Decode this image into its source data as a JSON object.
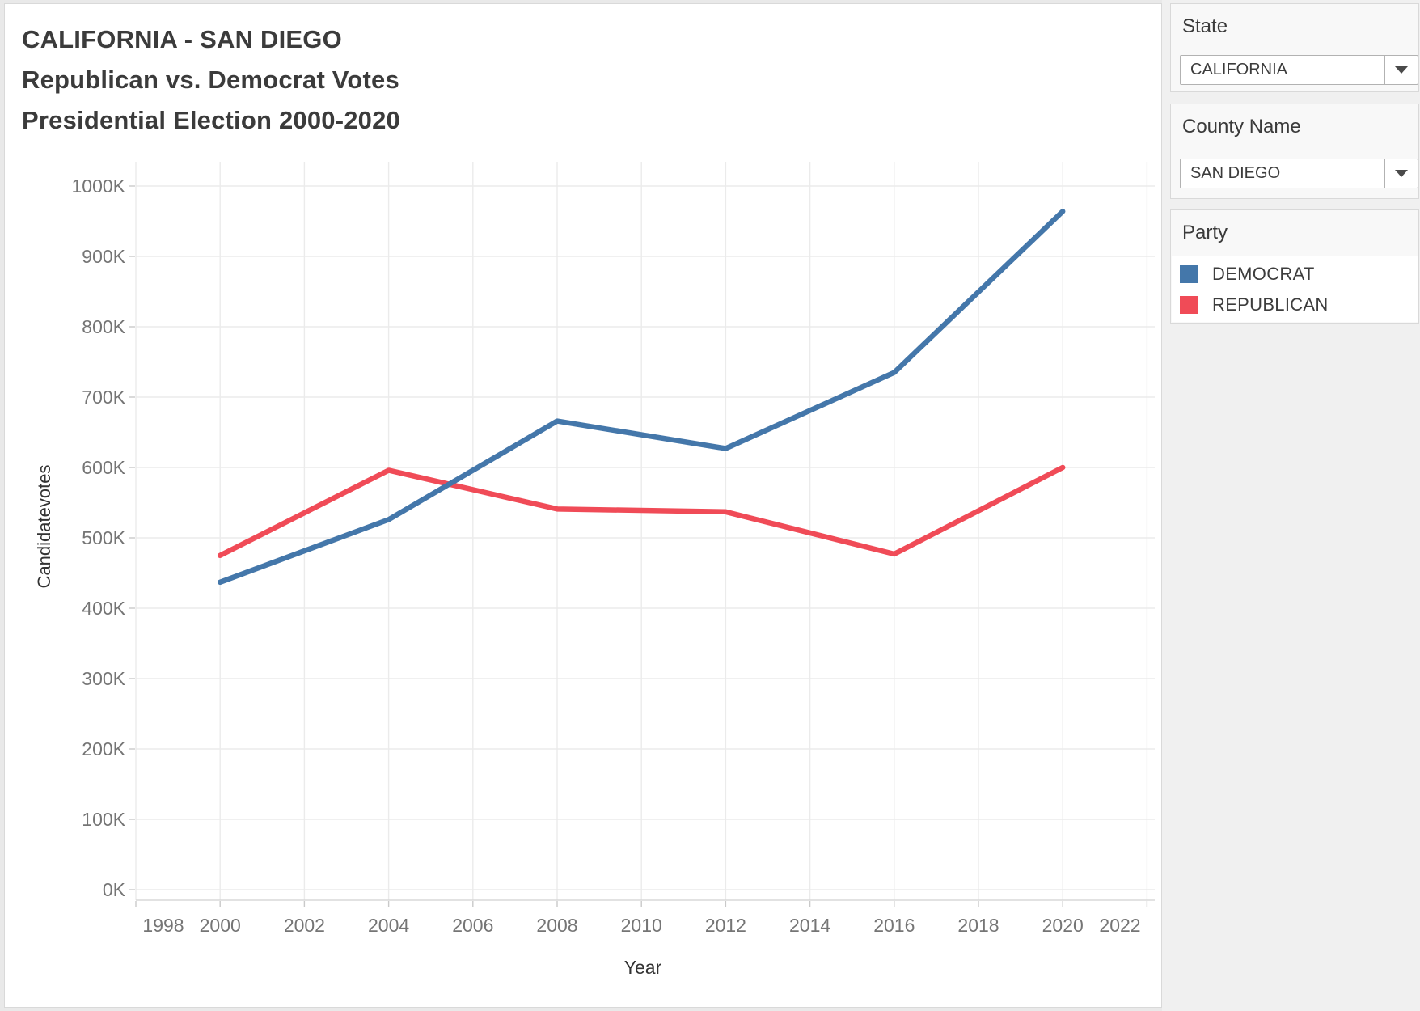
{
  "title": {
    "line1": "CALIFORNIA - SAN DIEGO",
    "line2": "Republican vs. Democrat Votes",
    "line3": "Presidential Election 2000-2020"
  },
  "filters": {
    "state": {
      "label": "State",
      "value": "CALIFORNIA"
    },
    "county": {
      "label": "County Name",
      "value": "SAN DIEGO"
    }
  },
  "legend": {
    "title": "Party",
    "items": [
      {
        "label": "DEMOCRAT",
        "color": "#4477aa"
      },
      {
        "label": "REPUBLICAN",
        "color": "#f04b57"
      }
    ]
  },
  "chart_data": {
    "type": "line",
    "title": "CALIFORNIA - SAN DIEGO Republican vs. Democrat Votes Presidential Election 2000-2020",
    "xlabel": "Year",
    "ylabel": "Candidatevotes",
    "x": [
      2000,
      2004,
      2008,
      2012,
      2016,
      2020
    ],
    "series": [
      {
        "name": "DEMOCRAT",
        "color": "#4477aa",
        "values": [
          437000,
          526000,
          666000,
          627000,
          735000,
          964000
        ]
      },
      {
        "name": "REPUBLICAN",
        "color": "#f04b57",
        "values": [
          475000,
          596000,
          541000,
          537000,
          477000,
          600000
        ]
      }
    ],
    "x_tick_labels": [
      "1998",
      "2000",
      "2002",
      "2004",
      "2006",
      "2008",
      "2010",
      "2012",
      "2014",
      "2016",
      "2018",
      "2020",
      "2022"
    ],
    "y_tick_labels": [
      "0K",
      "100K",
      "200K",
      "300K",
      "400K",
      "500K",
      "600K",
      "700K",
      "800K",
      "900K",
      "1000K"
    ],
    "xlim": [
      1998,
      2022
    ],
    "ylim": [
      0,
      1000000
    ],
    "grid": true,
    "legend_position": "right"
  }
}
